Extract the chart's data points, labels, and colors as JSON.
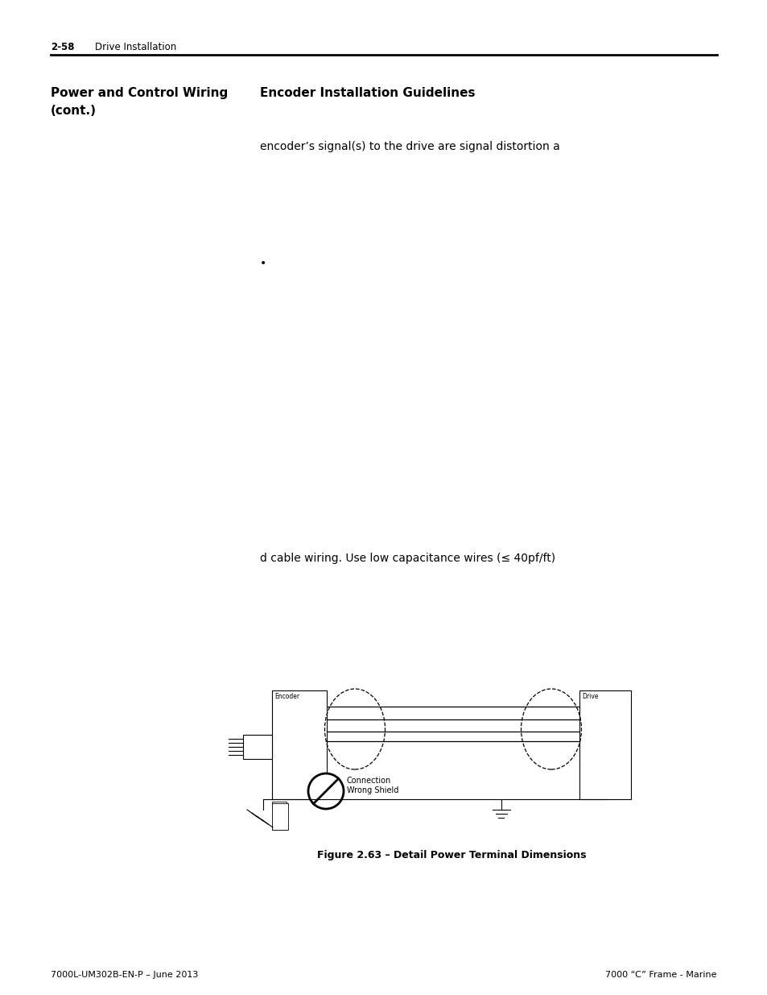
{
  "bg_color": "#ffffff",
  "header_text_left": "2-58",
  "header_text_left2": "Drive Installation",
  "left_col_title_line1": "Power and Control Wiring",
  "left_col_title_line2": "(cont.)",
  "right_col_title": "Encoder Installation Guidelines",
  "body_text1": "encoder’s signal(s) to the drive are signal distortion a",
  "body_text2": "d cable wiring. Use low capacitance wires (≤ 40pf/ft)",
  "figure_caption": "Figure 2.63 – Detail Power Terminal Dimensions",
  "footer_left": "7000L-UM302B-EN-P – June 2013",
  "footer_right": "7000 “C” Frame - Marine",
  "header_fontsize": 8.5,
  "title_fontsize": 11,
  "body_fontsize": 10,
  "footer_fontsize": 8,
  "caption_fontsize": 9,
  "diag_label_fontsize": 5.5,
  "shield_label_fontsize": 7
}
